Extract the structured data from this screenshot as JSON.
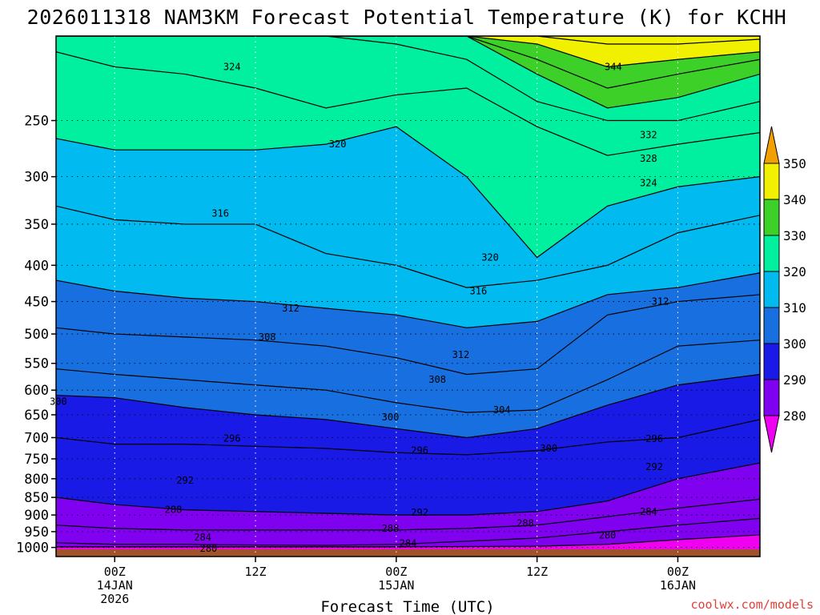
{
  "chart_data": {
    "type": "contour",
    "title": "2026011318 NAM3KM Forecast Potential Temperature (K) for KCHH",
    "xlabel": "Forecast Time (UTC)",
    "ylabel": "",
    "credit": "coolwx.com/models",
    "y_axis": {
      "quantity": "pressure (hPa)",
      "range": [
        190,
        1030
      ],
      "ticks": [
        250,
        300,
        350,
        400,
        450,
        500,
        550,
        600,
        650,
        700,
        750,
        800,
        850,
        900,
        950,
        1000
      ]
    },
    "x_axis": {
      "range_hours_from_2026011400Z": [
        -5,
        55
      ],
      "ticks": [
        {
          "hour": 0,
          "lines": [
            "00Z",
            "14JAN",
            "2026"
          ]
        },
        {
          "hour": 12,
          "lines": [
            "12Z"
          ]
        },
        {
          "hour": 24,
          "lines": [
            "00Z",
            "15JAN"
          ]
        },
        {
          "hour": 36,
          "lines": [
            "12Z"
          ]
        },
        {
          "hour": 48,
          "lines": [
            "00Z",
            "16JAN"
          ]
        }
      ]
    },
    "grid": true,
    "hours": [
      -5,
      0,
      6,
      12,
      18,
      24,
      30,
      36,
      42,
      48,
      55
    ],
    "contour_interval_K": 4,
    "isentropes": [
      {
        "theta": 280,
        "pressure": [
          998,
          998,
          998,
          998,
          998,
          998,
          997,
          996,
          990,
          975,
          960
        ]
      },
      {
        "theta": 284,
        "pressure": [
          985,
          990,
          990,
          992,
          993,
          990,
          980,
          970,
          950,
          930,
          910
        ]
      },
      {
        "theta": 288,
        "pressure": [
          930,
          940,
          945,
          945,
          945,
          945,
          940,
          930,
          905,
          880,
          855
        ]
      },
      {
        "theta": 292,
        "pressure": [
          850,
          870,
          885,
          890,
          895,
          900,
          900,
          890,
          860,
          800,
          760
        ]
      },
      {
        "theta": 296,
        "pressure": [
          700,
          715,
          715,
          720,
          725,
          735,
          740,
          730,
          710,
          700,
          660
        ]
      },
      {
        "theta": 300,
        "pressure": [
          610,
          615,
          635,
          650,
          660,
          680,
          700,
          680,
          630,
          590,
          570
        ]
      },
      {
        "theta": 304,
        "pressure": [
          560,
          570,
          580,
          590,
          600,
          625,
          645,
          640,
          580,
          520,
          510
        ]
      },
      {
        "theta": 308,
        "pressure": [
          490,
          500,
          505,
          510,
          520,
          540,
          570,
          560,
          470,
          450,
          440
        ]
      },
      {
        "theta": 312,
        "pressure": [
          420,
          435,
          445,
          450,
          460,
          470,
          490,
          480,
          440,
          430,
          410
        ]
      },
      {
        "theta": 316,
        "pressure": [
          330,
          345,
          350,
          350,
          385,
          400,
          430,
          420,
          400,
          360,
          340
        ]
      },
      {
        "theta": 320,
        "pressure": [
          265,
          275,
          275,
          275,
          270,
          255,
          300,
          390,
          330,
          310,
          300
        ]
      },
      {
        "theta": 324,
        "pressure": [
          200,
          210,
          215,
          225,
          240,
          230,
          225,
          255,
          280,
          270,
          260
        ]
      },
      {
        "theta": 328,
        "pressure": [
          190,
          190,
          190,
          190,
          190,
          195,
          205,
          235,
          250,
          250,
          235
        ]
      },
      {
        "theta": 332,
        "pressure": [
          190,
          190,
          190,
          190,
          190,
          190,
          190,
          215,
          240,
          232,
          215
        ]
      },
      {
        "theta": 336,
        "pressure": [
          190,
          190,
          190,
          190,
          190,
          190,
          190,
          205,
          225,
          215,
          205
        ]
      },
      {
        "theta": 340,
        "pressure": [
          190,
          190,
          190,
          190,
          190,
          190,
          190,
          195,
          210,
          205,
          200
        ]
      },
      {
        "theta": 344,
        "pressure": [
          190,
          190,
          190,
          190,
          190,
          190,
          190,
          190,
          195,
          195,
          192
        ]
      },
      {
        "theta": 348,
        "pressure": [
          190,
          190,
          190,
          190,
          190,
          190,
          190,
          190,
          190,
          190,
          190
        ]
      }
    ],
    "contour_labels": [
      {
        "text": "324",
        "hour": 10,
        "pressure": 210
      },
      {
        "text": "344",
        "hour": 42.5,
        "pressure": 210
      },
      {
        "text": "320",
        "hour": 19,
        "pressure": 270
      },
      {
        "text": "332",
        "hour": 45.5,
        "pressure": 262
      },
      {
        "text": "328",
        "hour": 45.5,
        "pressure": 283
      },
      {
        "text": "324",
        "hour": 45.5,
        "pressure": 306
      },
      {
        "text": "316",
        "hour": 9,
        "pressure": 338
      },
      {
        "text": "320",
        "hour": 32,
        "pressure": 390
      },
      {
        "text": "316",
        "hour": 31,
        "pressure": 435
      },
      {
        "text": "312",
        "hour": 15,
        "pressure": 460
      },
      {
        "text": "312",
        "hour": 46.5,
        "pressure": 450
      },
      {
        "text": "308",
        "hour": 13,
        "pressure": 505
      },
      {
        "text": "312",
        "hour": 29.5,
        "pressure": 535
      },
      {
        "text": "308",
        "hour": 27.5,
        "pressure": 580
      },
      {
        "text": "300",
        "hour": -4.8,
        "pressure": 623
      },
      {
        "text": "304",
        "hour": 33,
        "pressure": 640
      },
      {
        "text": "300",
        "hour": 23.5,
        "pressure": 655
      },
      {
        "text": "296",
        "hour": 10,
        "pressure": 702
      },
      {
        "text": "296",
        "hour": 26,
        "pressure": 730
      },
      {
        "text": "300",
        "hour": 37,
        "pressure": 725
      },
      {
        "text": "296",
        "hour": 46,
        "pressure": 703
      },
      {
        "text": "292",
        "hour": 46,
        "pressure": 770
      },
      {
        "text": "292",
        "hour": 6,
        "pressure": 805
      },
      {
        "text": "292",
        "hour": 26,
        "pressure": 893
      },
      {
        "text": "288",
        "hour": 5,
        "pressure": 885
      },
      {
        "text": "288",
        "hour": 23.5,
        "pressure": 940
      },
      {
        "text": "288",
        "hour": 35,
        "pressure": 925
      },
      {
        "text": "284",
        "hour": 45.5,
        "pressure": 890
      },
      {
        "text": "284",
        "hour": 7.5,
        "pressure": 968
      },
      {
        "text": "284",
        "hour": 25,
        "pressure": 987
      },
      {
        "text": "280",
        "hour": 42,
        "pressure": 962
      },
      {
        "text": "280",
        "hour": 8,
        "pressure": 1004
      }
    ],
    "colorbar": {
      "ticks": [
        280,
        290,
        300,
        310,
        320,
        330,
        340,
        350
      ],
      "bins": [
        {
          "from": 270,
          "to": 280,
          "color": "#f000f0"
        },
        {
          "from": 280,
          "to": 290,
          "color": "#8000f0"
        },
        {
          "from": 290,
          "to": 300,
          "color": "#1a1ae6"
        },
        {
          "from": 300,
          "to": 310,
          "color": "#1870e0"
        },
        {
          "from": 310,
          "to": 320,
          "color": "#00baf0"
        },
        {
          "from": 320,
          "to": 330,
          "color": "#00f0a0"
        },
        {
          "from": 330,
          "to": 340,
          "color": "#3cd028"
        },
        {
          "from": 340,
          "to": 350,
          "color": "#f0f000"
        },
        {
          "from": 350,
          "to": 360,
          "color": "#f0a000"
        }
      ]
    },
    "ground_color": "#a0522d"
  }
}
